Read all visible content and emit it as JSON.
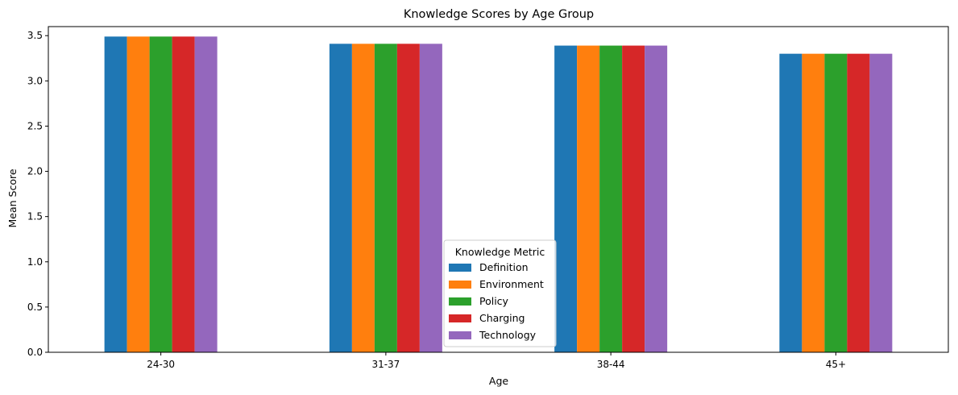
{
  "chart_data": {
    "type": "bar",
    "title": "Knowledge Scores by Age Group",
    "xlabel": "Age",
    "ylabel": "Mean Score",
    "categories": [
      "24-30",
      "31-37",
      "38-44",
      "45+"
    ],
    "ylim": [
      0,
      3.6
    ],
    "yticks": [
      "0.0",
      "0.5",
      "1.0",
      "1.5",
      "2.0",
      "2.5",
      "3.0",
      "3.5"
    ],
    "grid": false,
    "legend": {
      "title": "Knowledge Metric",
      "placement": "lower-center"
    },
    "series": [
      {
        "name": "Definition",
        "color": "#1f77b4",
        "values": [
          3.49,
          3.41,
          3.39,
          3.3
        ]
      },
      {
        "name": "Environment",
        "color": "#ff7f0e",
        "values": [
          3.49,
          3.41,
          3.39,
          3.3
        ]
      },
      {
        "name": "Policy",
        "color": "#2ca02c",
        "values": [
          3.49,
          3.41,
          3.39,
          3.3
        ]
      },
      {
        "name": "Charging",
        "color": "#d62728",
        "values": [
          3.49,
          3.41,
          3.39,
          3.3
        ]
      },
      {
        "name": "Technology",
        "color": "#9467bd",
        "values": [
          3.49,
          3.41,
          3.39,
          3.3
        ]
      }
    ]
  }
}
